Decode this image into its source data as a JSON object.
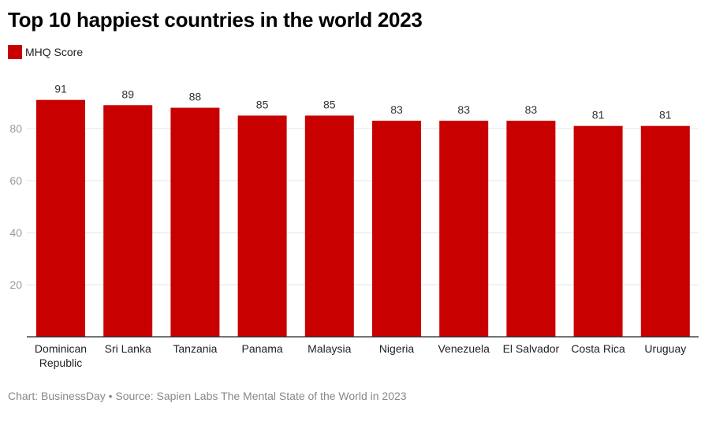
{
  "chart_data": {
    "type": "bar",
    "title": "Top 10 happiest countries in the world 2023",
    "categories": [
      "Dominican Republic",
      "Sri Lanka",
      "Tanzania",
      "Panama",
      "Malaysia",
      "Nigeria",
      "Venezuela",
      "El Salvador",
      "Costa Rica",
      "Uruguay"
    ],
    "series": [
      {
        "name": "MHQ Score",
        "values": [
          91,
          89,
          88,
          85,
          85,
          83,
          83,
          83,
          81,
          81
        ],
        "color": "#c80000"
      }
    ],
    "yticks": [
      20,
      40,
      60,
      80
    ],
    "ylim": [
      0,
      95
    ],
    "grid": true,
    "legend_placement": "top-left",
    "xlabel": "",
    "ylabel": ""
  },
  "footer": "Chart: BusinessDay • Source: Sapien Labs The Mental State of the World in 2023"
}
